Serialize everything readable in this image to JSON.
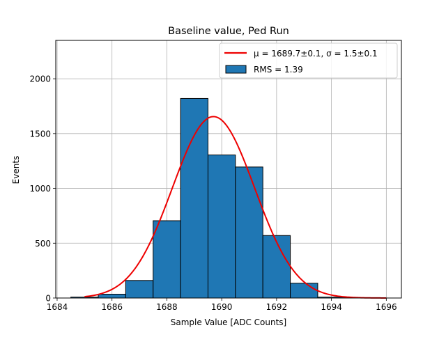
{
  "chart_data": {
    "type": "bar",
    "subtype": "histogram",
    "title": "Baseline value, Ped Run",
    "xlabel": "Sample Value [ADC Counts]",
    "ylabel": "Events",
    "xlim": [
      1683.95,
      1696.55
    ],
    "ylim": [
      0,
      2350
    ],
    "xticks": [
      1684,
      1686,
      1688,
      1690,
      1692,
      1694,
      1696
    ],
    "yticks": [
      0,
      500,
      1000,
      1500,
      2000
    ],
    "grid": true,
    "bins": [
      {
        "x0": 1684.5,
        "x1": 1685.5,
        "count": 8
      },
      {
        "x0": 1685.5,
        "x1": 1686.5,
        "count": 35
      },
      {
        "x0": 1686.5,
        "x1": 1687.5,
        "count": 160
      },
      {
        "x0": 1687.5,
        "x1": 1688.5,
        "count": 705
      },
      {
        "x0": 1688.5,
        "x1": 1689.5,
        "count": 1820
      },
      {
        "x0": 1689.5,
        "x1": 1690.5,
        "count": 1305
      },
      {
        "x0": 1690.5,
        "x1": 1691.5,
        "count": 1195
      },
      {
        "x0": 1691.5,
        "x1": 1692.5,
        "count": 570
      },
      {
        "x0": 1692.5,
        "x1": 1693.5,
        "count": 135
      },
      {
        "x0": 1693.5,
        "x1": 1694.5,
        "count": 8
      }
    ],
    "fit": {
      "mu": 1689.7,
      "sigma": 1.5,
      "amplitude": 1655,
      "x_range": [
        1685,
        1696
      ]
    },
    "legend": {
      "position": "top-right",
      "fit_label": "μ = 1689.7±0.1, σ = 1.5±0.1",
      "hist_label": "RMS = 1.39"
    },
    "colors": {
      "bar": "#1f77b4",
      "bar_edge": "#000000",
      "fit": "#ee0000",
      "grid": "#b0b0b0"
    }
  }
}
